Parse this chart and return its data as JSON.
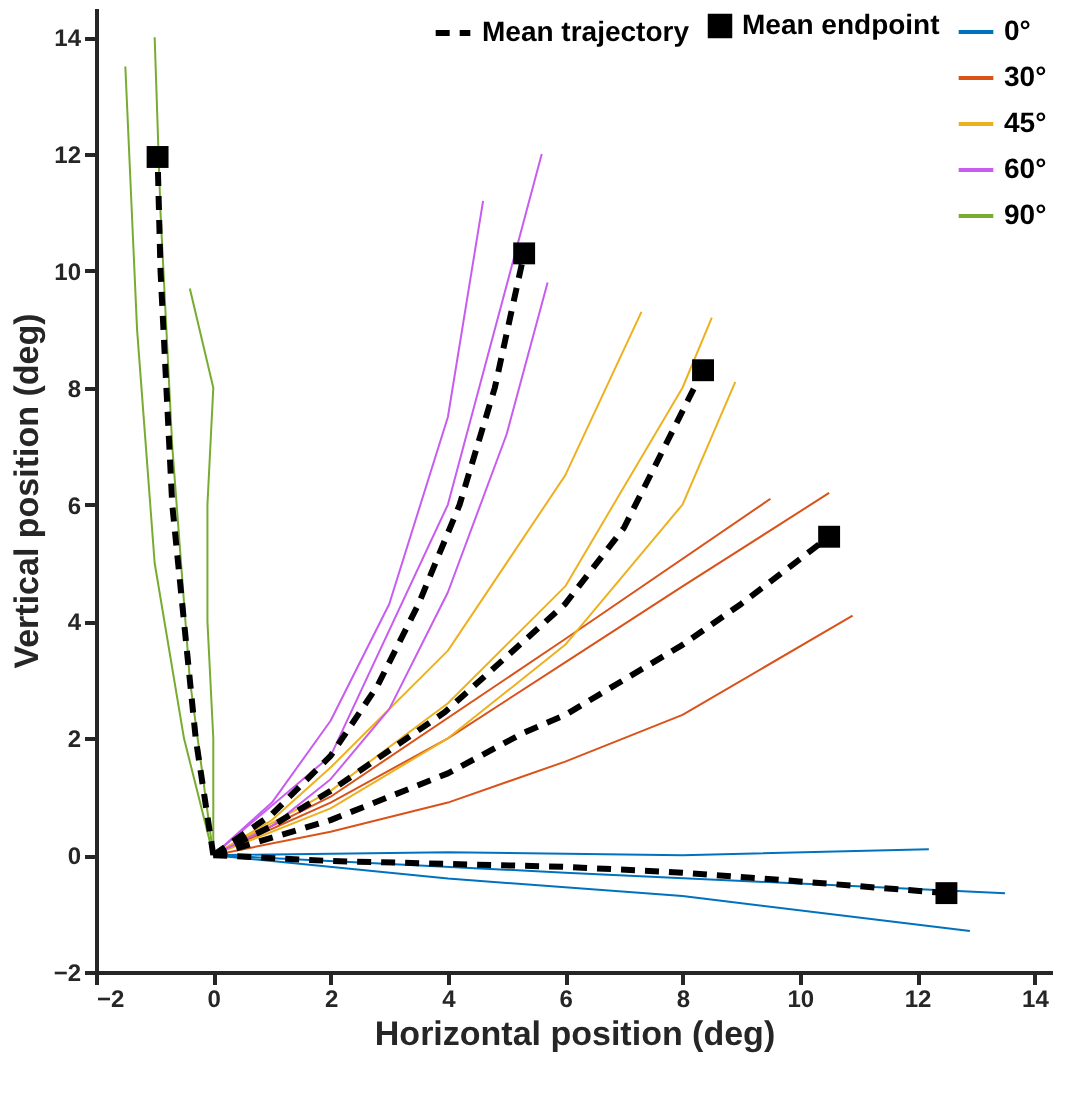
{
  "chart_data": {
    "type": "line",
    "xlabel": "Horizontal position (deg)",
    "ylabel": "Vertical position (deg)",
    "xlim": [
      -2,
      14.3
    ],
    "ylim": [
      -2,
      14.5
    ],
    "xticks": [
      -2,
      0,
      2,
      4,
      6,
      8,
      10,
      12,
      14
    ],
    "yticks": [
      -2,
      0,
      2,
      4,
      6,
      8,
      10,
      12,
      14
    ],
    "grid": false,
    "legend": "top right",
    "series": [
      {
        "name": "0°",
        "color": "#0072bd",
        "x": [
          0,
          4,
          8,
          12.2
        ],
        "values": [
          0,
          0.05,
          0,
          0.1
        ]
      },
      {
        "color": "#0072bd",
        "x": [
          0,
          4,
          8,
          12.9
        ],
        "values": [
          0,
          -0.4,
          -0.7,
          -1.3
        ]
      },
      {
        "color": "#0072bd",
        "x": [
          0,
          6,
          13.5
        ],
        "values": [
          0,
          -0.3,
          -0.65
        ]
      },
      {
        "name": "30°",
        "color": "#d95319",
        "x": [
          0,
          2,
          4,
          6,
          8,
          10.5
        ],
        "values": [
          0,
          0.9,
          2,
          3.3,
          4.6,
          6.2
        ]
      },
      {
        "color": "#d95319",
        "x": [
          0,
          2,
          4,
          6,
          8,
          10.9
        ],
        "values": [
          0,
          0.4,
          0.9,
          1.6,
          2.4,
          4.1
        ]
      },
      {
        "color": "#d95319",
        "x": [
          0,
          2,
          6,
          9.5
        ],
        "values": [
          0,
          1,
          3.7,
          6.1
        ]
      },
      {
        "name": "45°",
        "color": "#edb120",
        "x": [
          0,
          1,
          2,
          4,
          6,
          7.3
        ],
        "values": [
          0,
          0.6,
          1.5,
          3.5,
          6.5,
          9.3
        ]
      },
      {
        "color": "#edb120",
        "x": [
          0,
          2,
          4,
          6,
          8,
          8.9
        ],
        "values": [
          0,
          0.8,
          2,
          3.6,
          6,
          8.1
        ]
      },
      {
        "color": "#edb120",
        "x": [
          0,
          2,
          4,
          6,
          8,
          8.5
        ],
        "values": [
          0,
          1.1,
          2.6,
          4.6,
          8,
          9.2
        ]
      },
      {
        "name": "60°",
        "color": "#c85cf0",
        "x": [
          0,
          1,
          2,
          3,
          4,
          4.6
        ],
        "values": [
          0,
          0.9,
          2.3,
          4.3,
          7.5,
          11.2
        ]
      },
      {
        "color": "#c85cf0",
        "x": [
          0,
          1,
          2,
          3,
          4,
          5,
          5.7
        ],
        "values": [
          0,
          0.5,
          1.3,
          2.5,
          4.5,
          7.2,
          9.8
        ]
      },
      {
        "color": "#c85cf0",
        "x": [
          0,
          2,
          4,
          5.6
        ],
        "values": [
          0,
          1.7,
          6,
          12
        ]
      },
      {
        "name": "90°",
        "color": "#77ac30",
        "x": [
          0,
          -0.5,
          -1,
          -1.3,
          -1.5
        ],
        "values": [
          0,
          2,
          5,
          9,
          13.5
        ]
      },
      {
        "color": "#77ac30",
        "x": [
          0,
          0,
          -0.1,
          -0.1,
          0,
          -0.4
        ],
        "values": [
          0,
          2,
          4,
          6,
          8,
          9.7
        ]
      },
      {
        "color": "#77ac30",
        "x": [
          0,
          -0.4,
          -0.7,
          -0.9,
          -1
        ],
        "values": [
          0,
          3,
          7,
          11,
          14
        ]
      },
      {
        "name": "Mean trajectory",
        "color": "#000000",
        "line_style": "dashed",
        "x": [
          0,
          2,
          4,
          6,
          8,
          10,
          12.5
        ],
        "values": [
          0,
          -0.1,
          -0.15,
          -0.2,
          -0.3,
          -0.45,
          -0.65
        ]
      },
      {
        "color": "#000000",
        "line_style": "dashed",
        "x": [
          0,
          1,
          2,
          4,
          5.3,
          6,
          8,
          9,
          10.5
        ],
        "values": [
          0,
          0.3,
          0.6,
          1.4,
          2.1,
          2.4,
          3.6,
          4.3,
          5.45
        ]
      },
      {
        "color": "#000000",
        "line_style": "dashed",
        "x": [
          0,
          1,
          2,
          3.95,
          6,
          7,
          8.35
        ],
        "values": [
          0,
          0.5,
          1.1,
          2.45,
          4.3,
          5.6,
          8.3
        ]
      },
      {
        "color": "#000000",
        "line_style": "dashed",
        "x": [
          0,
          1,
          2,
          2.8,
          3.5,
          4.2,
          4.8,
          5.3
        ],
        "values": [
          0,
          0.7,
          1.7,
          2.9,
          4.3,
          6,
          8,
          10.3
        ]
      },
      {
        "color": "#000000",
        "line_style": "dashed",
        "x": [
          0,
          -0.3,
          -0.5,
          -0.7,
          -0.8,
          -0.9,
          -0.95
        ],
        "values": [
          0,
          2,
          4,
          6,
          8,
          10,
          11.95
        ]
      },
      {
        "name": "Mean endpoint",
        "type": "scatter",
        "marker": "square",
        "color": "#000000",
        "x": [
          12.5,
          10.5,
          8.35,
          5.3,
          -0.95
        ],
        "values": [
          -0.65,
          5.45,
          8.3,
          10.3,
          11.95
        ]
      }
    ]
  }
}
